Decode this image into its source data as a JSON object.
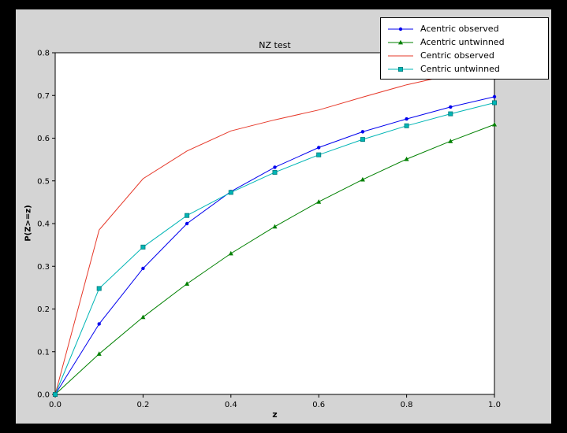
{
  "colors": {
    "window_background": "#000000",
    "figure_background": "#d4d4d4",
    "axes_background": "#ffffff",
    "axes_frame": "#000000",
    "legend_background": "#ffffff",
    "legend_border": "#000000"
  },
  "chart_data": {
    "type": "line",
    "title": "NZ test",
    "xlabel": "z",
    "ylabel": "P(Z>=z)",
    "xlim": [
      0.0,
      1.0
    ],
    "ylim": [
      0.0,
      0.8
    ],
    "xticks": [
      "0.0",
      "0.2",
      "0.4",
      "0.6",
      "0.8",
      "1.0"
    ],
    "yticks": [
      "0.0",
      "0.1",
      "0.2",
      "0.3",
      "0.4",
      "0.5",
      "0.6",
      "0.7",
      "0.8"
    ],
    "grid": false,
    "legend_position": "upper right",
    "x": [
      0.0,
      0.1,
      0.2,
      0.3,
      0.4,
      0.5,
      0.6,
      0.7,
      0.8,
      0.9,
      1.0
    ],
    "series": [
      {
        "name": "Acentric observed",
        "color": "#0000ee",
        "marker": "circle",
        "values": [
          0.0,
          0.165,
          0.295,
          0.4,
          0.475,
          0.532,
          0.578,
          0.615,
          0.645,
          0.673,
          0.697
        ]
      },
      {
        "name": "Acentric untwinned",
        "color": "#008000",
        "marker": "triangle",
        "values": [
          0.0,
          0.095,
          0.181,
          0.259,
          0.33,
          0.393,
          0.451,
          0.503,
          0.551,
          0.593,
          0.632
        ]
      },
      {
        "name": "Centric observed",
        "color": "#e6392a",
        "marker": "none",
        "values": [
          0.0,
          0.385,
          0.505,
          0.57,
          0.617,
          0.643,
          0.666,
          0.696,
          0.725,
          0.748,
          0.768
        ]
      },
      {
        "name": "Centric untwinned",
        "color": "#00b5b5",
        "marker": "square",
        "values": [
          0.0,
          0.248,
          0.345,
          0.419,
          0.473,
          0.52,
          0.561,
          0.597,
          0.629,
          0.657,
          0.683
        ]
      }
    ]
  }
}
